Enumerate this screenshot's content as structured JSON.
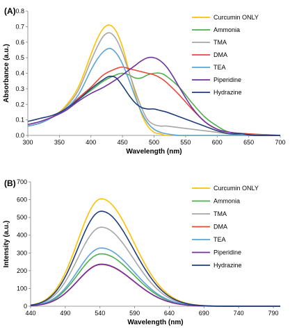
{
  "chart_data": [
    {
      "panel": "(A)",
      "type": "line",
      "xlabel": "Wavelength (nm)",
      "ylabel": "Absorbance (a.u.)",
      "xlim": [
        300,
        700
      ],
      "ylim": [
        0,
        0.8
      ],
      "xticks": [
        300,
        350,
        400,
        450,
        500,
        550,
        600,
        650,
        700
      ],
      "yticks": [
        0,
        0.1,
        0.2,
        0.3,
        0.4,
        0.5,
        0.6,
        0.7,
        0.8
      ],
      "grid": false,
      "legend": "right",
      "series": [
        {
          "name": "Curcumin ONLY",
          "color": "#FFC000",
          "x": [
            300,
            320,
            340,
            360,
            380,
            400,
            410,
            420,
            430,
            440,
            450,
            460,
            470,
            480,
            490,
            500,
            510,
            520,
            540,
            560,
            600,
            650,
            700
          ],
          "y": [
            0.06,
            0.08,
            0.12,
            0.19,
            0.31,
            0.52,
            0.62,
            0.69,
            0.71,
            0.67,
            0.57,
            0.42,
            0.27,
            0.14,
            0.06,
            0.02,
            0.01,
            0.0,
            0.0,
            0.0,
            0.0,
            0.0,
            0.0
          ]
        },
        {
          "name": "Ammonia",
          "color": "#4CAF50",
          "x": [
            300,
            320,
            340,
            360,
            380,
            400,
            420,
            440,
            450,
            460,
            470,
            480,
            490,
            500,
            510,
            520,
            540,
            560,
            580,
            600,
            620,
            650,
            700
          ],
          "y": [
            0.06,
            0.08,
            0.12,
            0.17,
            0.23,
            0.29,
            0.35,
            0.39,
            0.4,
            0.39,
            0.37,
            0.37,
            0.39,
            0.4,
            0.4,
            0.38,
            0.31,
            0.21,
            0.12,
            0.06,
            0.02,
            0.01,
            0.0
          ]
        },
        {
          "name": "TMA",
          "color": "#A6A6A6",
          "x": [
            300,
            320,
            340,
            360,
            380,
            400,
            410,
            420,
            430,
            440,
            450,
            460,
            470,
            480,
            490,
            500,
            510,
            520,
            540,
            560,
            580,
            600,
            620,
            650,
            700
          ],
          "y": [
            0.06,
            0.08,
            0.12,
            0.18,
            0.29,
            0.48,
            0.57,
            0.64,
            0.66,
            0.62,
            0.53,
            0.41,
            0.29,
            0.18,
            0.1,
            0.07,
            0.06,
            0.06,
            0.05,
            0.04,
            0.03,
            0.02,
            0.01,
            0.0,
            0.0
          ]
        },
        {
          "name": "DMA",
          "color": "#E8483A",
          "x": [
            300,
            320,
            340,
            360,
            380,
            400,
            420,
            440,
            450,
            460,
            470,
            480,
            490,
            500,
            510,
            520,
            540,
            560,
            580,
            600,
            620,
            650,
            700
          ],
          "y": [
            0.06,
            0.08,
            0.12,
            0.17,
            0.24,
            0.31,
            0.39,
            0.43,
            0.44,
            0.43,
            0.42,
            0.41,
            0.4,
            0.39,
            0.37,
            0.34,
            0.26,
            0.17,
            0.09,
            0.04,
            0.02,
            0.01,
            0.0
          ]
        },
        {
          "name": "TEA",
          "color": "#5BA3D9",
          "x": [
            300,
            320,
            340,
            360,
            380,
            400,
            410,
            420,
            430,
            440,
            450,
            460,
            470,
            480,
            490,
            500,
            510,
            520,
            540,
            560,
            580,
            600,
            650,
            700
          ],
          "y": [
            0.06,
            0.08,
            0.12,
            0.17,
            0.26,
            0.42,
            0.49,
            0.54,
            0.56,
            0.53,
            0.46,
            0.36,
            0.25,
            0.15,
            0.08,
            0.04,
            0.02,
            0.01,
            0.0,
            0.0,
            0.0,
            0.0,
            0.0,
            0.0
          ]
        },
        {
          "name": "Piperidine",
          "color": "#7030A0",
          "x": [
            300,
            320,
            340,
            360,
            380,
            400,
            420,
            440,
            460,
            470,
            480,
            490,
            500,
            510,
            520,
            530,
            540,
            560,
            580,
            600,
            620,
            640,
            660,
            700
          ],
          "y": [
            0.07,
            0.09,
            0.12,
            0.16,
            0.22,
            0.27,
            0.31,
            0.36,
            0.42,
            0.45,
            0.48,
            0.5,
            0.5,
            0.48,
            0.44,
            0.38,
            0.31,
            0.18,
            0.09,
            0.04,
            0.02,
            0.01,
            0.0,
            0.0
          ]
        },
        {
          "name": "Hydrazine",
          "color": "#1F3D7A",
          "x": [
            300,
            320,
            340,
            360,
            380,
            400,
            420,
            430,
            440,
            450,
            460,
            470,
            480,
            490,
            500,
            510,
            520,
            540,
            560,
            580,
            600,
            620,
            640,
            660,
            700
          ],
          "y": [
            0.09,
            0.11,
            0.13,
            0.17,
            0.23,
            0.3,
            0.36,
            0.38,
            0.37,
            0.32,
            0.26,
            0.21,
            0.18,
            0.17,
            0.17,
            0.16,
            0.15,
            0.12,
            0.09,
            0.06,
            0.03,
            0.01,
            0.01,
            0.0,
            0.0
          ]
        }
      ]
    },
    {
      "panel": "(B)",
      "type": "line",
      "xlabel": "Wavelength (nm)",
      "ylabel": "Intensity (a.u.)",
      "xlim": [
        440,
        800
      ],
      "ylim": [
        0,
        700
      ],
      "xticks": [
        440,
        490,
        540,
        590,
        640,
        690,
        740,
        790
      ],
      "yticks": [
        0,
        100,
        200,
        300,
        400,
        500,
        600,
        700
      ],
      "grid": false,
      "legend": "right",
      "series": [
        {
          "name": "Curcumin ONLY",
          "color": "#FFC000",
          "peak": 605
        },
        {
          "name": "Ammonia",
          "color": "#4CAF50",
          "peak": 295
        },
        {
          "name": "TMA",
          "color": "#A6A6A6",
          "peak": 445
        },
        {
          "name": "DMA",
          "color": "#E8483A",
          "peak": 235
        },
        {
          "name": "TEA",
          "color": "#5BA3D9",
          "peak": 328
        },
        {
          "name": "Piperidine",
          "color": "#7030A0",
          "peak": 237
        },
        {
          "name": "Hydrazine",
          "color": "#1F3D7A",
          "peak": 535
        }
      ]
    }
  ]
}
